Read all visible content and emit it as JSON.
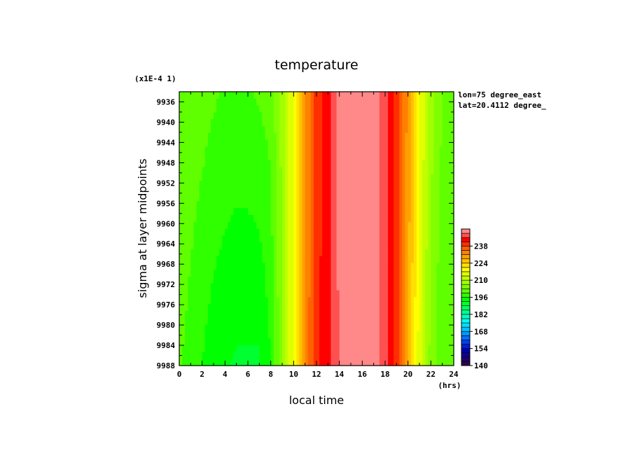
{
  "chart_data": {
    "type": "heatmap",
    "title": "temperature",
    "xlabel": "local time",
    "ylabel": "sigma at layer midpoints",
    "x_unit": "(hrs)",
    "y_scale_note": "(x1E-4 1)",
    "annotations": [
      "lon=75 degree_east",
      "lat=20.4112 degree_"
    ],
    "xlim": [
      0,
      24
    ],
    "ylim": [
      9934,
      9988
    ],
    "y_inverted": true,
    "x_ticks": [
      0,
      2,
      4,
      6,
      8,
      10,
      12,
      14,
      16,
      18,
      20,
      22,
      24
    ],
    "y_ticks": [
      9936,
      9940,
      9944,
      9948,
      9952,
      9956,
      9960,
      9964,
      9968,
      9972,
      9976,
      9980,
      9984,
      9988
    ],
    "colorbar": {
      "tick_labels": [
        140,
        154,
        168,
        182,
        196,
        210,
        224,
        238
      ],
      "min": 140,
      "max": 252,
      "step": 3.5,
      "colors": [
        "#300050",
        "#200070",
        "#100090",
        "#0000b0",
        "#0020d0",
        "#0040f0",
        "#0070ff",
        "#0098ff",
        "#00c0ff",
        "#00e0ff",
        "#00ffee",
        "#00ffc0",
        "#00ff90",
        "#00ff60",
        "#00ff30",
        "#00ff00",
        "#30ff00",
        "#60ff00",
        "#80ff00",
        "#a0ff00",
        "#c0ff00",
        "#e0ff00",
        "#ffff00",
        "#ffe000",
        "#ffc000",
        "#ffa000",
        "#ff8000",
        "#ff6000",
        "#ff3000",
        "#ff0000",
        "#ff5050",
        "#ff8888"
      ]
    },
    "field_by_hour": {
      "hours": [
        0,
        1,
        2,
        3,
        4,
        5,
        6,
        7,
        8,
        9,
        10,
        11,
        12,
        13,
        14,
        15,
        16,
        17,
        18,
        19,
        20,
        21,
        22,
        23,
        24
      ],
      "top_level_9936": [
        203,
        202,
        201,
        200,
        199,
        199,
        199,
        200,
        201,
        208,
        218,
        230,
        240,
        243,
        250,
        251,
        251,
        250,
        247,
        240,
        230,
        218,
        208,
        203,
        203
      ],
      "bottom_level_9988": [
        200,
        198,
        196,
        194,
        193,
        192,
        192,
        192,
        196,
        206,
        218,
        231,
        241,
        243,
        249,
        252,
        252,
        251,
        247,
        240,
        228,
        215,
        205,
        200,
        200
      ]
    }
  }
}
